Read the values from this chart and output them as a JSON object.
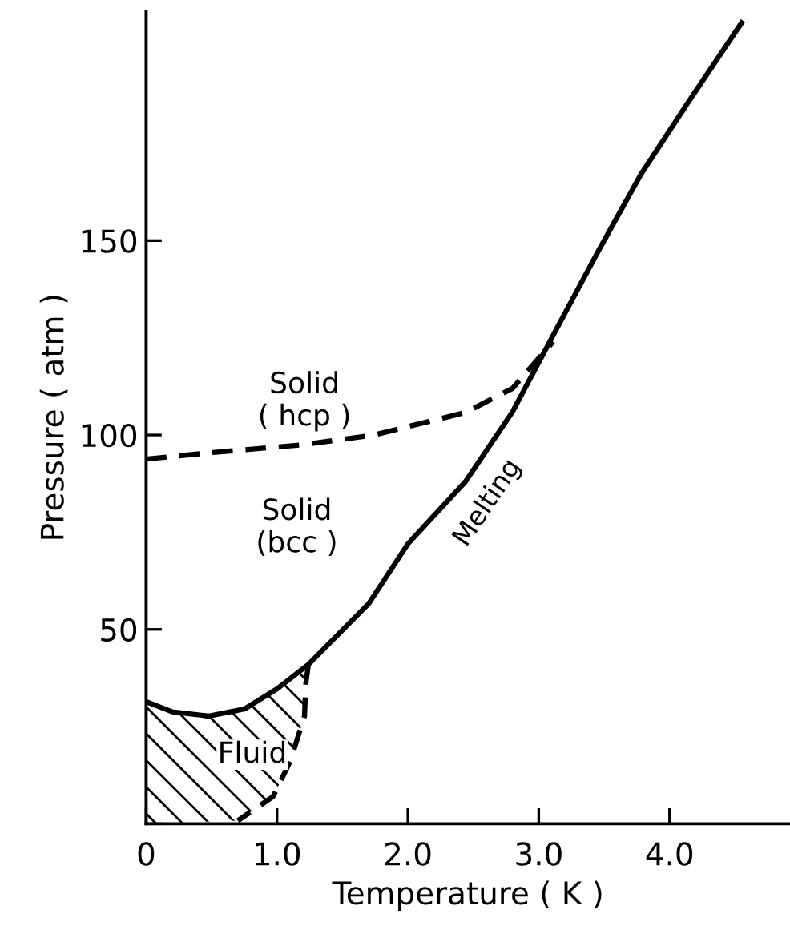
{
  "chart_data": {
    "type": "line",
    "xlabel": "Temperature ( K )",
    "ylabel": "Pressure ( atm )",
    "xlim": [
      0,
      4.92
    ],
    "ylim": [
      0,
      209
    ],
    "xticks": [
      0,
      {
        "value": 1,
        "label": "1.0"
      },
      {
        "value": 2,
        "label": "2.0"
      },
      {
        "value": 3,
        "label": "3.0"
      },
      {
        "value": 4,
        "label": "4.0"
      }
    ],
    "yticks": [
      {
        "value": 0,
        "label": null
      },
      50,
      100,
      150
    ],
    "grid": false,
    "legend": false,
    "marker": "none",
    "series": [
      {
        "name": "Melting",
        "color": "#000000",
        "line_style": "solid",
        "x": [
          0,
          0.2,
          0.48,
          0.75,
          1.0,
          1.24,
          1.7,
          2.0,
          2.44,
          2.8,
          3.13,
          3.45,
          3.78,
          4.15,
          4.55
        ],
        "values": [
          31.4,
          28.8,
          27.7,
          29.5,
          34.7,
          41,
          56.6,
          72,
          88,
          106,
          126.9,
          147,
          167,
          186,
          206
        ]
      },
      {
        "color": "#000000",
        "line_style": "dashed",
        "x": [
          0,
          0.51,
          1.2,
          1.74,
          2.44,
          2.8,
          3.11
        ],
        "values": [
          93.8,
          95.5,
          97.5,
          100,
          105.8,
          112,
          124
        ]
      },
      {
        "color": "#000000",
        "line_style": "dashed",
        "x": [
          1.24,
          1.22,
          1.21,
          1.1,
          0.97,
          0.7
        ],
        "values": [
          41,
          36,
          27.7,
          16,
          7,
          0.8
        ]
      }
    ],
    "annotations": [
      "Solid\n( hcp )",
      "Solid\n(bcc )",
      "Fluid"
    ]
  }
}
